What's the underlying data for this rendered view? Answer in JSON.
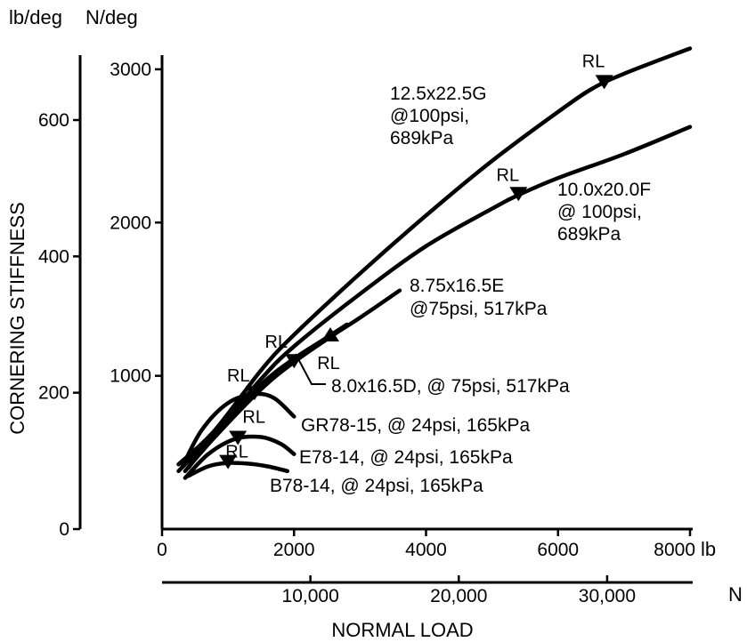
{
  "chart_data": {
    "type": "line",
    "title": "",
    "ylabel": "CORNERING STIFFNESS",
    "xlabel": "NORMAL LOAD",
    "y_units": {
      "primary": "lb/deg",
      "secondary": "N/deg"
    },
    "x_units": {
      "primary": "lb",
      "secondary": "N"
    },
    "y_ticks_lb_per_deg": [
      0,
      200,
      400,
      600
    ],
    "y_ticks_N_per_deg": [
      1000,
      2000,
      3000
    ],
    "x_ticks_lb": [
      0,
      2000,
      4000,
      6000,
      8000
    ],
    "x_tick_labels_lb": [
      "0",
      "2000",
      "4000",
      "6000",
      "8000"
    ],
    "x_ticks_N": [
      10000,
      20000,
      30000
    ],
    "x_tick_labels_N": [
      "10,000",
      "20,000",
      "30,000"
    ],
    "xlim": [
      0,
      8000
    ],
    "ylim": [
      0,
      700
    ],
    "grid": false,
    "legend": "none",
    "marker_label": "RL",
    "series": [
      {
        "name": "12.5x22.5G @100psi, 689kPa",
        "label_lines": [
          "12.5x22.5G",
          "@100psi,",
          "689kPa"
        ],
        "x": [
          250,
          800,
          1500,
          2000,
          3000,
          4000,
          5000,
          6000,
          6500,
          7000,
          8000
        ],
        "y": [
          95,
          145,
          233,
          285,
          375,
          460,
          540,
          612,
          645,
          668,
          705
        ],
        "rl_load": 6700,
        "rl_marker": "down"
      },
      {
        "name": "10.0x20.0F @ 100psi, 689kPa",
        "label_lines": [
          "10.0x20.0F",
          "@ 100psi,",
          "689kPa"
        ],
        "x": [
          250,
          800,
          1500,
          2000,
          3000,
          4000,
          5000,
          5400,
          6000,
          7000,
          8000
        ],
        "y": [
          85,
          140,
          220,
          268,
          345,
          415,
          470,
          490,
          515,
          550,
          590
        ],
        "rl_load": 5400,
        "rl_marker": "down"
      },
      {
        "name": "8.75x16.5E @75psi, 517kPa",
        "label_lines": [
          "8.75x16.5E",
          "@75psi, 517kPa"
        ],
        "x": [
          350,
          800,
          1500,
          2000,
          2600,
          3000,
          3600
        ],
        "y": [
          85,
          135,
          205,
          245,
          285,
          310,
          350
        ],
        "rl_load": 2000,
        "rl_marker": "down"
      },
      {
        "name": "8.0x16.5D, @ 75psi, 517kPa",
        "label_lines": [
          "8.0x16.5D, @ 75psi, 517kPa"
        ],
        "x": [
          400,
          800,
          1500,
          2000,
          2400,
          2800
        ],
        "y": [
          90,
          140,
          212,
          250,
          275,
          300
        ],
        "rl_load": 2550,
        "rl_marker": "up"
      },
      {
        "name": "GR78-15, @ 24psi, 165kPa",
        "label_lines": [
          "GR78-15, @ 24psi, 165kPa"
        ],
        "x": [
          300,
          600,
          1000,
          1400,
          1700,
          2000
        ],
        "y": [
          90,
          145,
          185,
          198,
          192,
          165
        ],
        "rl_load": 1400,
        "rl_marker": "down"
      },
      {
        "name": "E78-14, @ 24psi, 165kPa",
        "label_lines": [
          "E78-14, @ 24psi, 165kPa"
        ],
        "x": [
          350,
          700,
          1100,
          1500,
          1800,
          2000
        ],
        "y": [
          75,
          110,
          132,
          135,
          125,
          110
        ],
        "rl_load": 1150,
        "rl_marker": "down"
      },
      {
        "name": "B78-14, @ 24psi, 165kPa",
        "label_lines": [
          "B78-14, @ 24psi, 165kPa"
        ],
        "x": [
          400,
          700,
          1000,
          1300,
          1600,
          1900
        ],
        "y": [
          78,
          92,
          97,
          96,
          92,
          85
        ],
        "rl_load": 1000,
        "rl_marker": "down"
      }
    ]
  }
}
